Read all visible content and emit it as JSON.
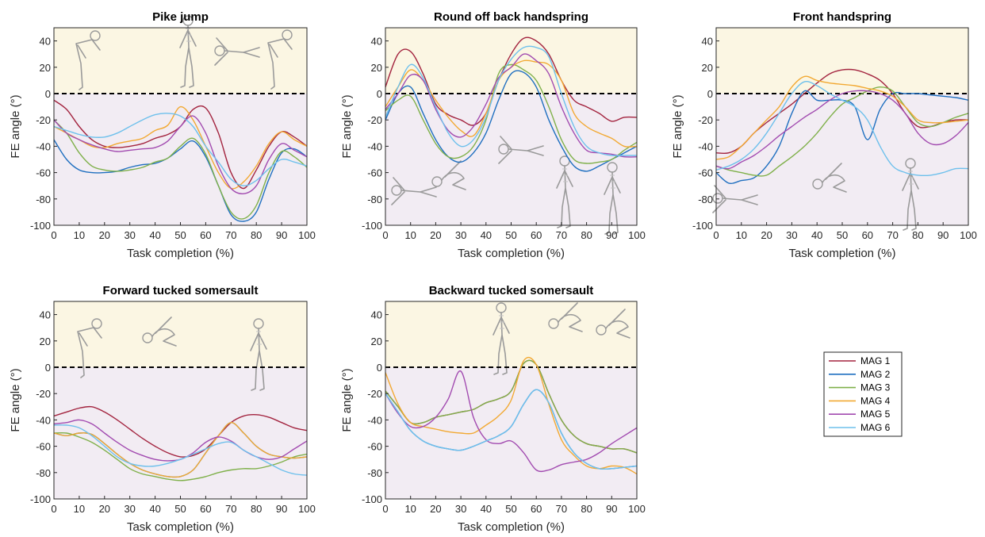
{
  "figure": {
    "band_colors": {
      "positive": "#fbf6e3",
      "negative": "#f2ecf3"
    },
    "series_colors": [
      "#a3243f",
      "#1f6fc0",
      "#7fb04a",
      "#f2a933",
      "#a24bb0",
      "#6ec0ec"
    ],
    "legend": [
      "MAG 1",
      "MAG 2",
      "MAG 3",
      "MAG 4",
      "MAG 5",
      "MAG 6"
    ],
    "legend_placement": "right"
  },
  "chart_data": [
    {
      "type": "line",
      "title": "Pike jump",
      "xlabel": "Task completion (%)",
      "ylabel": "FE angle (°)",
      "xlim": [
        0,
        100
      ],
      "ylim": [
        -100,
        50
      ],
      "xticks": [
        0,
        10,
        20,
        30,
        40,
        50,
        60,
        70,
        80,
        90,
        100
      ],
      "yticks": [
        40,
        20,
        0,
        -20,
        -40,
        -60,
        -80,
        -100
      ],
      "x": [
        0,
        5,
        10,
        15,
        20,
        25,
        30,
        35,
        40,
        45,
        50,
        55,
        60,
        65,
        70,
        75,
        80,
        85,
        90,
        95,
        100
      ],
      "series": [
        {
          "name": "MAG 1",
          "values": [
            -5,
            -12,
            -25,
            -35,
            -40,
            -41,
            -40,
            -38,
            -34,
            -31,
            -25,
            -12,
            -11,
            -30,
            -60,
            -72,
            -58,
            -40,
            -29,
            -33,
            -40
          ]
        },
        {
          "name": "MAG 2",
          "values": [
            -35,
            -50,
            -58,
            -60,
            -60,
            -59,
            -56,
            -54,
            -53,
            -49,
            -42,
            -36,
            -48,
            -70,
            -92,
            -97,
            -90,
            -65,
            -45,
            -42,
            -48
          ]
        },
        {
          "name": "MAG 3",
          "values": [
            -20,
            -30,
            -45,
            -55,
            -58,
            -59,
            -58,
            -56,
            -52,
            -49,
            -40,
            -34,
            -46,
            -70,
            -90,
            -95,
            -85,
            -60,
            -44,
            -48,
            -56
          ]
        },
        {
          "name": "MAG 4",
          "values": [
            -25,
            -30,
            -35,
            -40,
            -41,
            -38,
            -36,
            -34,
            -28,
            -24,
            -10,
            -20,
            -40,
            -60,
            -72,
            -67,
            -55,
            -38,
            -29,
            -35,
            -40
          ]
        },
        {
          "name": "MAG 5",
          "values": [
            -20,
            -30,
            -35,
            -39,
            -42,
            -44,
            -43,
            -42,
            -41,
            -36,
            -25,
            -17,
            -30,
            -55,
            -72,
            -76,
            -70,
            -50,
            -38,
            -43,
            -48
          ]
        },
        {
          "name": "MAG 6",
          "values": [
            -25,
            -28,
            -31,
            -33,
            -33,
            -30,
            -25,
            -20,
            -16,
            -15,
            -17,
            -25,
            -40,
            -52,
            -65,
            -70,
            -66,
            -57,
            -50,
            -52,
            -55
          ]
        }
      ]
    },
    {
      "type": "line",
      "title": "Round off back handspring",
      "xlabel": "Task completion (%)",
      "ylabel": "FE angle (°)",
      "xlim": [
        0,
        100
      ],
      "ylim": [
        -100,
        50
      ],
      "xticks": [
        0,
        10,
        20,
        30,
        40,
        50,
        60,
        70,
        80,
        90,
        100
      ],
      "yticks": [
        40,
        20,
        0,
        -20,
        -40,
        -60,
        -80,
        -100
      ],
      "x": [
        0,
        5,
        10,
        15,
        20,
        25,
        30,
        35,
        40,
        45,
        50,
        55,
        60,
        65,
        70,
        75,
        80,
        85,
        90,
        95,
        100
      ],
      "series": [
        {
          "name": "MAG 1",
          "values": [
            5,
            30,
            32,
            15,
            -8,
            -16,
            -20,
            -24,
            -15,
            10,
            30,
            42,
            40,
            30,
            10,
            -5,
            -10,
            -15,
            -21,
            -18,
            -18
          ]
        },
        {
          "name": "MAG 2",
          "values": [
            -20,
            0,
            5,
            -15,
            -35,
            -48,
            -52,
            -45,
            -30,
            -5,
            15,
            16,
            5,
            -20,
            -40,
            -55,
            -59,
            -55,
            -50,
            -45,
            -40
          ]
        },
        {
          "name": "MAG 3",
          "values": [
            -13,
            -5,
            -2,
            -20,
            -38,
            -48,
            -48,
            -40,
            -20,
            15,
            22,
            18,
            10,
            -10,
            -35,
            -50,
            -53,
            -52,
            -50,
            -43,
            -37
          ]
        },
        {
          "name": "MAG 4",
          "values": [
            -10,
            5,
            18,
            10,
            -5,
            -18,
            -28,
            -32,
            -15,
            10,
            20,
            25,
            24,
            22,
            10,
            -15,
            -25,
            -30,
            -34,
            -40,
            -40
          ]
        },
        {
          "name": "MAG 5",
          "values": [
            -12,
            0,
            14,
            10,
            -12,
            -28,
            -33,
            -25,
            -8,
            12,
            20,
            30,
            25,
            15,
            -10,
            -30,
            -43,
            -45,
            -46,
            -48,
            -48
          ]
        },
        {
          "name": "MAG 6",
          "values": [
            -18,
            5,
            22,
            12,
            -10,
            -30,
            -40,
            -35,
            -18,
            10,
            26,
            35,
            35,
            28,
            0,
            -25,
            -40,
            -45,
            -47,
            -47,
            -47
          ]
        }
      ]
    },
    {
      "type": "line",
      "title": "Front handspring",
      "xlabel": "Task completion (%)",
      "ylabel": "FE angle (°)",
      "xlim": [
        0,
        100
      ],
      "ylim": [
        -100,
        50
      ],
      "xticks": [
        0,
        10,
        20,
        30,
        40,
        50,
        60,
        70,
        80,
        90,
        100
      ],
      "yticks": [
        40,
        20,
        0,
        -20,
        -40,
        -60,
        -80,
        -100
      ],
      "x": [
        0,
        5,
        10,
        15,
        20,
        25,
        30,
        35,
        40,
        45,
        50,
        55,
        60,
        65,
        70,
        75,
        80,
        85,
        90,
        95,
        100
      ],
      "series": [
        {
          "name": "MAG 1",
          "values": [
            -45,
            -45,
            -40,
            -30,
            -22,
            -15,
            -8,
            0,
            8,
            15,
            18,
            18,
            15,
            10,
            0,
            -15,
            -25,
            -25,
            -22,
            -20,
            -20
          ]
        },
        {
          "name": "MAG 2",
          "values": [
            -60,
            -68,
            -66,
            -64,
            -55,
            -40,
            -15,
            2,
            -5,
            -5,
            -5,
            -10,
            -35,
            -12,
            0,
            0,
            0,
            -1,
            -2,
            -3,
            -5
          ]
        },
        {
          "name": "MAG 3",
          "values": [
            -55,
            -58,
            -60,
            -62,
            -62,
            -55,
            -48,
            -40,
            -30,
            -18,
            -8,
            -3,
            2,
            5,
            2,
            -10,
            -22,
            -25,
            -22,
            -18,
            -15
          ]
        },
        {
          "name": "MAG 4",
          "values": [
            -50,
            -48,
            -40,
            -30,
            -20,
            -10,
            5,
            13,
            10,
            8,
            7,
            6,
            4,
            2,
            -2,
            -10,
            -20,
            -22,
            -22,
            -21,
            -20
          ]
        },
        {
          "name": "MAG 5",
          "values": [
            -55,
            -57,
            -52,
            -47,
            -40,
            -32,
            -25,
            -18,
            -12,
            -5,
            0,
            2,
            2,
            0,
            -5,
            -15,
            -30,
            -38,
            -38,
            -32,
            -22
          ]
        },
        {
          "name": "MAG 6",
          "values": [
            -58,
            -55,
            -50,
            -42,
            -30,
            -15,
            0,
            9,
            6,
            0,
            -5,
            -10,
            -20,
            -40,
            -55,
            -60,
            -62,
            -62,
            -60,
            -57,
            -57
          ]
        }
      ]
    },
    {
      "type": "line",
      "title": "Forward tucked somersault",
      "xlabel": "Task completion (%)",
      "ylabel": "FE angle (°)",
      "xlim": [
        0,
        100
      ],
      "ylim": [
        -100,
        50
      ],
      "xticks": [
        0,
        10,
        20,
        30,
        40,
        50,
        60,
        70,
        80,
        90,
        100
      ],
      "yticks": [
        40,
        20,
        0,
        -20,
        -40,
        -60,
        -80,
        -100
      ],
      "x": [
        0,
        5,
        10,
        15,
        20,
        25,
        30,
        35,
        40,
        45,
        50,
        55,
        60,
        65,
        70,
        75,
        80,
        85,
        90,
        95,
        100
      ],
      "series": [
        {
          "name": "MAG 1",
          "values": [
            -37,
            -34,
            -31,
            -30,
            -34,
            -40,
            -47,
            -54,
            -60,
            -65,
            -68,
            -67,
            -62,
            -52,
            -42,
            -37,
            -36,
            -38,
            -42,
            -46,
            -48
          ]
        },
        {
          "name": "MAG 2",
          "values": [
            -50,
            -52,
            -50,
            -51,
            -58,
            -66,
            -73,
            -78,
            -81,
            -83,
            -83,
            -78,
            -65,
            -52,
            -42,
            -50,
            -60,
            -66,
            -68,
            -69,
            -68
          ]
        },
        {
          "name": "MAG 3",
          "values": [
            -50,
            -50,
            -53,
            -57,
            -63,
            -70,
            -77,
            -81,
            -83,
            -85,
            -86,
            -85,
            -83,
            -80,
            -78,
            -77,
            -77,
            -75,
            -72,
            -68,
            -66
          ]
        },
        {
          "name": "MAG 4",
          "values": [
            -50,
            -52,
            -50,
            -51,
            -58,
            -66,
            -73,
            -78,
            -81,
            -83,
            -83,
            -78,
            -65,
            -52,
            -42,
            -50,
            -60,
            -66,
            -68,
            -69,
            -68
          ]
        },
        {
          "name": "MAG 5",
          "values": [
            -43,
            -42,
            -40,
            -43,
            -50,
            -57,
            -63,
            -67,
            -70,
            -71,
            -70,
            -65,
            -57,
            -53,
            -56,
            -63,
            -68,
            -70,
            -68,
            -62,
            -56
          ]
        },
        {
          "name": "MAG 6",
          "values": [
            -44,
            -44,
            -46,
            -52,
            -60,
            -68,
            -73,
            -75,
            -75,
            -73,
            -70,
            -66,
            -62,
            -58,
            -57,
            -63,
            -68,
            -73,
            -78,
            -81,
            -82
          ]
        }
      ]
    },
    {
      "type": "line",
      "title": "Backward tucked somersault",
      "xlabel": "Task completion (%)",
      "ylabel": "FE angle (°)",
      "xlim": [
        0,
        100
      ],
      "ylim": [
        -100,
        50
      ],
      "xticks": [
        0,
        10,
        20,
        30,
        40,
        50,
        60,
        70,
        80,
        90,
        100
      ],
      "yticks": [
        40,
        20,
        0,
        -20,
        -40,
        -60,
        -80,
        -100
      ],
      "x": [
        0,
        5,
        10,
        15,
        20,
        25,
        30,
        35,
        40,
        45,
        50,
        55,
        60,
        65,
        70,
        75,
        80,
        85,
        90,
        95,
        100
      ],
      "series": [
        {
          "name": "MAG 1",
          "values": [
            -18,
            -30,
            -42,
            -42,
            -38,
            -36,
            -34,
            -32,
            -27,
            -24,
            -18,
            3,
            2,
            -20,
            -40,
            -52,
            -58,
            -60,
            -62,
            -62,
            -65
          ]
        },
        {
          "name": "MAG 2",
          "values": [
            -20,
            -34,
            -48,
            -56,
            -60,
            -62,
            -63,
            -60,
            -56,
            -52,
            -45,
            -28,
            -17,
            -27,
            -50,
            -65,
            -73,
            -77,
            -77,
            -76,
            -75
          ]
        },
        {
          "name": "MAG 3",
          "values": [
            -18,
            -30,
            -42,
            -42,
            -38,
            -36,
            -34,
            -32,
            -27,
            -24,
            -18,
            3,
            2,
            -20,
            -40,
            -52,
            -58,
            -60,
            -62,
            -62,
            -65
          ]
        },
        {
          "name": "MAG 4",
          "values": [
            -4,
            -28,
            -42,
            -45,
            -47,
            -49,
            -50,
            -50,
            -44,
            -37,
            -25,
            5,
            2,
            -28,
            -55,
            -67,
            -75,
            -77,
            -75,
            -76,
            -81
          ]
        },
        {
          "name": "MAG 5",
          "values": [
            -20,
            -35,
            -45,
            -45,
            -38,
            -24,
            -3,
            -38,
            -55,
            -58,
            -56,
            -65,
            -78,
            -78,
            -74,
            -72,
            -70,
            -65,
            -58,
            -52,
            -46
          ]
        },
        {
          "name": "MAG 6",
          "values": [
            -20,
            -34,
            -48,
            -56,
            -60,
            -62,
            -63,
            -60,
            -56,
            -52,
            -45,
            -28,
            -17,
            -27,
            -50,
            -65,
            -73,
            -77,
            -77,
            -76,
            -75
          ]
        }
      ]
    }
  ]
}
